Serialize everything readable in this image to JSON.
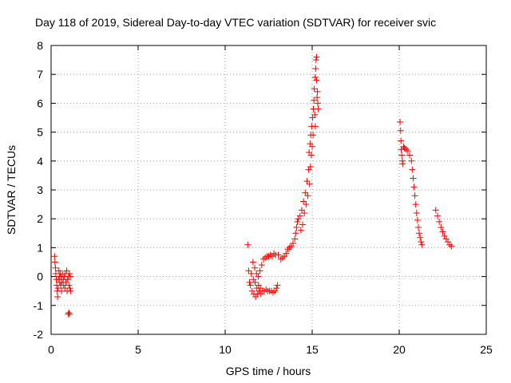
{
  "chart_data": {
    "type": "scatter",
    "title": "Day 118 of 2019, Sidereal Day-to-day VTEC variation (SDTVAR) for receiver svic",
    "xlabel": "GPS time / hours",
    "ylabel": "SDTVAR / TECUs",
    "xlim": [
      0,
      25
    ],
    "ylim": [
      -2,
      8
    ],
    "xticks": [
      0,
      5,
      10,
      15,
      20,
      25
    ],
    "yticks": [
      -2,
      -1,
      0,
      1,
      2,
      3,
      4,
      5,
      6,
      7,
      8
    ],
    "grid": true,
    "marker": "+",
    "series": [
      {
        "name": "SDTVAR",
        "color": "#ff0000",
        "points": [
          [
            0.2,
            0.7
          ],
          [
            0.22,
            0.5
          ],
          [
            0.25,
            0.3
          ],
          [
            0.27,
            0.1
          ],
          [
            0.3,
            -0.1
          ],
          [
            0.32,
            -0.3
          ],
          [
            0.35,
            -0.5
          ],
          [
            0.37,
            -0.7
          ],
          [
            0.4,
            -0.4
          ],
          [
            0.42,
            -0.1
          ],
          [
            0.45,
            0.2
          ],
          [
            0.47,
            0.0
          ],
          [
            0.5,
            -0.2
          ],
          [
            0.52,
            0.1
          ],
          [
            0.55,
            -0.3
          ],
          [
            0.57,
            0.0
          ],
          [
            0.6,
            -0.5
          ],
          [
            0.62,
            -0.2
          ],
          [
            0.65,
            0.1
          ],
          [
            0.7,
            -0.1
          ],
          [
            0.72,
            -0.3
          ],
          [
            0.75,
            0.0
          ],
          [
            0.8,
            -0.4
          ],
          [
            0.82,
            0.1
          ],
          [
            0.85,
            -0.2
          ],
          [
            0.9,
            0.2
          ],
          [
            0.92,
            -0.5
          ],
          [
            0.95,
            -0.1
          ],
          [
            1.0,
            0.0
          ],
          [
            1.02,
            -0.3
          ],
          [
            1.05,
            0.1
          ],
          [
            1.08,
            -0.4
          ],
          [
            1.1,
            0.0
          ],
          [
            1.12,
            -0.5
          ],
          [
            0.98,
            -1.3
          ],
          [
            1.02,
            -1.25
          ],
          [
            1.06,
            -1.3
          ],
          [
            11.3,
            1.1
          ],
          [
            11.35,
            0.2
          ],
          [
            11.4,
            -0.2
          ],
          [
            11.45,
            -0.3
          ],
          [
            11.5,
            0.1
          ],
          [
            11.55,
            -0.5
          ],
          [
            11.6,
            0.5
          ],
          [
            11.62,
            -0.1
          ],
          [
            11.65,
            -0.6
          ],
          [
            11.7,
            0.3
          ],
          [
            11.72,
            -0.2
          ],
          [
            11.75,
            -0.7
          ],
          [
            11.8,
            0.1
          ],
          [
            11.82,
            -0.4
          ],
          [
            11.85,
            -0.6
          ],
          [
            11.9,
            0.0
          ],
          [
            11.92,
            -0.3
          ],
          [
            11.95,
            -0.5
          ],
          [
            12.0,
            0.2
          ],
          [
            12.02,
            -0.4
          ],
          [
            12.05,
            -0.6
          ],
          [
            12.1,
            0.4
          ],
          [
            12.15,
            -0.5
          ],
          [
            12.2,
            0.6
          ],
          [
            12.25,
            -0.5
          ],
          [
            12.3,
            0.65
          ],
          [
            12.35,
            -0.45
          ],
          [
            12.4,
            0.7
          ],
          [
            12.45,
            -0.5
          ],
          [
            12.5,
            0.7
          ],
          [
            12.55,
            -0.5
          ],
          [
            12.6,
            0.75
          ],
          [
            12.65,
            -0.5
          ],
          [
            12.7,
            0.7
          ],
          [
            12.75,
            -0.55
          ],
          [
            12.8,
            0.8
          ],
          [
            12.85,
            -0.5
          ],
          [
            12.9,
            0.75
          ],
          [
            12.95,
            -0.4
          ],
          [
            13.0,
            -0.3
          ],
          [
            13.05,
            0.75
          ],
          [
            13.2,
            0.6
          ],
          [
            13.3,
            0.65
          ],
          [
            13.4,
            0.7
          ],
          [
            13.5,
            0.8
          ],
          [
            13.6,
            0.95
          ],
          [
            13.7,
            1.0
          ],
          [
            13.8,
            1.05
          ],
          [
            13.9,
            1.15
          ],
          [
            14.0,
            1.3
          ],
          [
            14.05,
            1.5
          ],
          [
            14.1,
            1.7
          ],
          [
            14.15,
            1.9
          ],
          [
            14.2,
            2.0
          ],
          [
            14.3,
            2.1
          ],
          [
            14.35,
            1.6
          ],
          [
            14.4,
            2.3
          ],
          [
            14.45,
            1.8
          ],
          [
            14.5,
            2.6
          ],
          [
            14.55,
            2.2
          ],
          [
            14.6,
            2.9
          ],
          [
            14.65,
            2.5
          ],
          [
            14.7,
            3.3
          ],
          [
            14.75,
            2.8
          ],
          [
            14.8,
            3.7
          ],
          [
            14.82,
            4.3
          ],
          [
            14.85,
            3.2
          ],
          [
            14.88,
            4.6
          ],
          [
            14.9,
            3.8
          ],
          [
            14.92,
            4.9
          ],
          [
            14.95,
            4.2
          ],
          [
            14.97,
            5.2
          ],
          [
            15.0,
            4.5
          ],
          [
            15.02,
            5.5
          ],
          [
            15.05,
            4.9
          ],
          [
            15.07,
            5.8
          ],
          [
            15.1,
            6.1
          ],
          [
            15.12,
            6.5
          ],
          [
            15.15,
            5.6
          ],
          [
            15.17,
            6.9
          ],
          [
            15.2,
            7.2
          ],
          [
            15.22,
            7.5
          ],
          [
            15.25,
            7.6
          ],
          [
            15.28,
            6.2
          ],
          [
            15.3,
            6.4
          ],
          [
            15.32,
            6.0
          ],
          [
            15.35,
            5.8
          ],
          [
            15.25,
            6.8
          ],
          [
            15.18,
            5.2
          ],
          [
            20.05,
            5.35
          ],
          [
            20.08,
            5.05
          ],
          [
            20.1,
            4.7
          ],
          [
            20.12,
            4.4
          ],
          [
            20.15,
            4.2
          ],
          [
            20.18,
            4.0
          ],
          [
            20.2,
            3.9
          ],
          [
            20.25,
            4.5
          ],
          [
            20.3,
            4.45
          ],
          [
            20.4,
            4.4
          ],
          [
            20.5,
            4.35
          ],
          [
            20.6,
            4.2
          ],
          [
            20.7,
            4.0
          ],
          [
            20.75,
            3.7
          ],
          [
            20.8,
            3.4
          ],
          [
            20.85,
            3.1
          ],
          [
            20.9,
            2.8
          ],
          [
            20.95,
            2.5
          ],
          [
            21.0,
            2.2
          ],
          [
            21.05,
            1.95
          ],
          [
            21.1,
            1.7
          ],
          [
            21.15,
            1.5
          ],
          [
            21.2,
            1.35
          ],
          [
            21.25,
            1.2
          ],
          [
            21.3,
            1.1
          ],
          [
            22.1,
            2.3
          ],
          [
            22.2,
            2.1
          ],
          [
            22.3,
            1.9
          ],
          [
            22.4,
            1.7
          ],
          [
            22.5,
            1.55
          ],
          [
            22.6,
            1.4
          ],
          [
            22.7,
            1.3
          ],
          [
            22.8,
            1.2
          ],
          [
            22.9,
            1.1
          ],
          [
            23.0,
            1.05
          ]
        ]
      }
    ]
  }
}
